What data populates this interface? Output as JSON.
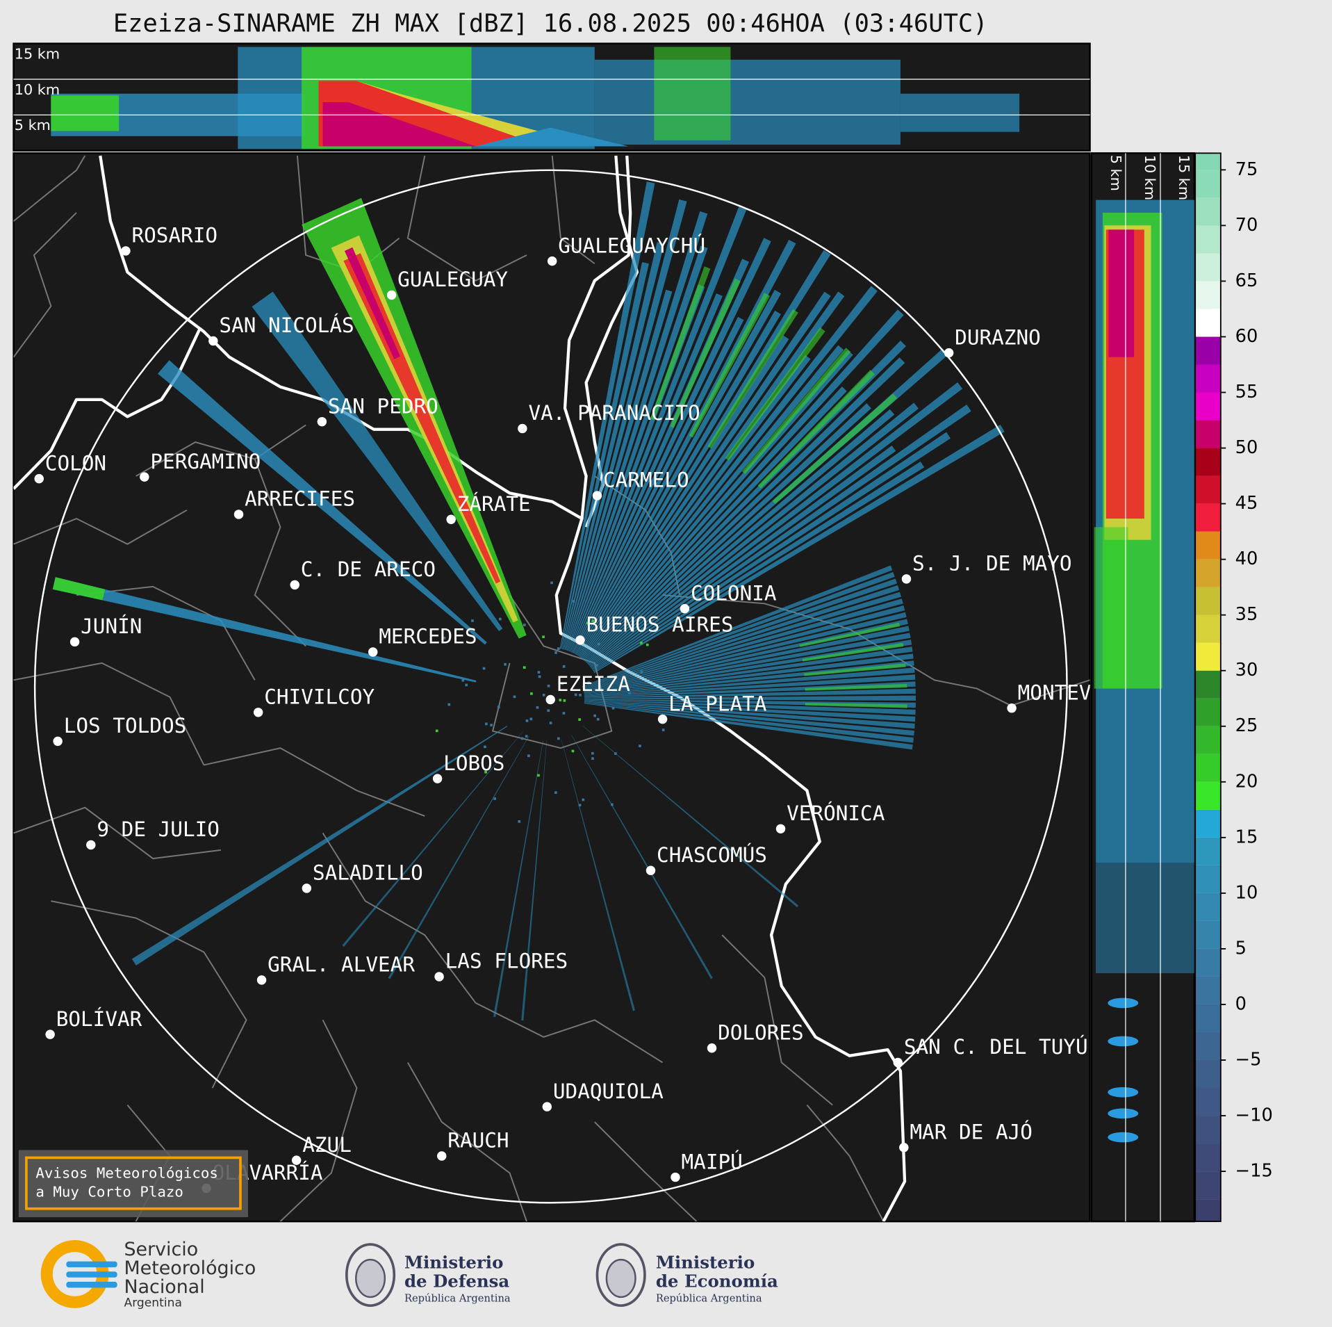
{
  "title": "Ezeiza-SINARAME ZH MAX [dBZ] 16.08.2025 00:46HOA (03:46UTC)",
  "top_panel": {
    "height_labels": [
      "15 km",
      "10 km",
      "5 km"
    ]
  },
  "side_panel": {
    "height_labels": [
      "5 km",
      "10 km",
      "15 km"
    ]
  },
  "colorbar": {
    "levels": [
      -19.5,
      -17.5,
      -15,
      -12.5,
      -10,
      -7.5,
      -5,
      -2.5,
      0,
      2.5,
      5,
      7.5,
      10,
      12.5,
      15,
      17.5,
      20,
      22.5,
      25,
      27.5,
      30,
      32.5,
      35,
      37.5,
      40,
      42.5,
      45,
      47.5,
      50,
      52.5,
      55,
      57.5,
      60,
      62.5,
      65,
      67.5,
      70,
      72.5,
      75,
      76.5
    ],
    "colors": [
      "#3b3f6b",
      "#3d4572",
      "#3e4b78",
      "#3f527f",
      "#3f5886",
      "#3e5f8c",
      "#3d6693",
      "#3b6e9a",
      "#3a75a0",
      "#387ca6",
      "#3683ac",
      "#3389b1",
      "#3190b7",
      "#2e97bc",
      "#24a8d8",
      "#3ae62a",
      "#35cc2a",
      "#32b82a",
      "#2fa02a",
      "#2c862a",
      "#f0ea3a",
      "#d8d23a",
      "#c8c033",
      "#d4a52a",
      "#e08a1a",
      "#f01e3c",
      "#d0102a",
      "#a80018",
      "#c8006a",
      "#e800c8",
      "#c800c0",
      "#9a00a8",
      "#ffffff",
      "#e6f8ee",
      "#cdf0dd",
      "#b3e8cd",
      "#9de0c0",
      "#8cdbb8",
      "#85d8b4"
    ],
    "ticks": [
      75,
      70,
      65,
      60,
      55,
      50,
      45,
      40,
      35,
      30,
      25,
      20,
      15,
      10,
      5,
      0,
      {
        "value": -5,
        "label": "−5"
      },
      {
        "value": -10,
        "label": "−10"
      },
      {
        "value": -15,
        "label": "−15"
      }
    ]
  },
  "cities": [
    "ROSARIO",
    "GUALEGUAYCHÚ",
    "GUALEGUAY",
    "SAN NICOLÁS",
    "DURAZNO",
    "SAN PEDRO",
    "VA. PARANACITO",
    "COLON",
    "PERGAMINO",
    "CARMELO",
    "ARRECIFES",
    "ZÁRATE",
    "S. J. DE MAYO",
    "C. DE ARECO",
    "COLONIA",
    "BUENOS AIRES",
    "JUNÍN",
    "MERCEDES",
    "MONTEVIDEO",
    "EZEIZA",
    "CHIVILCOY",
    "LA PLATA",
    "LOS TOLDOS",
    "LOBOS",
    "VERÓNICA",
    "9 DE JULIO",
    "CHASCOMÚS",
    "SALADILLO",
    "GRAL. ALVEAR",
    "LAS FLORES",
    "BOLÍVAR",
    "DOLORES",
    "SAN C. DEL TUYÚ",
    "UDAQUIOLA",
    "MAR DE AJÓ",
    "RAUCH",
    "AZUL",
    "OLAVARRÍA",
    "MAIPÚ"
  ],
  "notice": {
    "lines": [
      "Avisos Meteorológicos",
      "a Muy Corto Plazo"
    ]
  },
  "footer": {
    "smn": [
      "Servicio",
      "Meteorológico",
      "Nacional",
      "Argentina"
    ],
    "defensa": {
      "title": [
        "Ministerio",
        "de Defensa"
      ],
      "subtitle": "República Argentina"
    },
    "economia": {
      "title": [
        "Ministerio",
        "de Economía"
      ],
      "subtitle": "República Argentina"
    }
  }
}
